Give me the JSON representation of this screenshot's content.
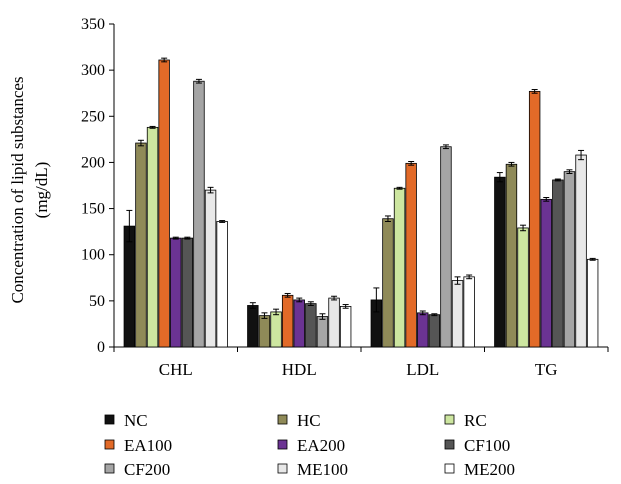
{
  "chart_data": {
    "type": "bar",
    "title": "",
    "xlabel": "",
    "ylabel_line1": "Concentration of lipid substances",
    "ylabel_line2": "(mg/dL)",
    "ylim": [
      0,
      350
    ],
    "yticks": [
      0,
      50,
      100,
      150,
      200,
      250,
      300,
      350
    ],
    "categories": [
      "CHL",
      "HDL",
      "LDL",
      "TG"
    ],
    "grid": false,
    "legend_position": "bottom",
    "series": [
      {
        "name": "NC",
        "color": "#111111",
        "values": [
          131,
          45,
          51,
          184
        ],
        "errors": [
          17,
          3,
          13,
          5
        ]
      },
      {
        "name": "HC",
        "color": "#8f8a58",
        "values": [
          221,
          34,
          139,
          198
        ],
        "errors": [
          3,
          3,
          3,
          2
        ]
      },
      {
        "name": "RC",
        "color": "#cde6a0",
        "values": [
          238,
          38,
          172,
          129
        ],
        "errors": [
          1,
          3,
          1,
          3
        ]
      },
      {
        "name": "EA100",
        "color": "#e26a28",
        "values": [
          311,
          56,
          199,
          277
        ],
        "errors": [
          2,
          2,
          2,
          2
        ]
      },
      {
        "name": "EA200",
        "color": "#6b3393",
        "values": [
          118,
          51,
          37,
          160
        ],
        "errors": [
          1,
          2,
          2,
          2
        ]
      },
      {
        "name": "CF100",
        "color": "#555555",
        "values": [
          118,
          47,
          35,
          181
        ],
        "errors": [
          1,
          2,
          1,
          1
        ]
      },
      {
        "name": "CF200",
        "color": "#a5a5a5",
        "values": [
          288,
          33,
          217,
          190
        ],
        "errors": [
          2,
          3,
          2,
          2
        ]
      },
      {
        "name": "ME100",
        "color": "#e8e8e8",
        "values": [
          170,
          53,
          72,
          208
        ],
        "errors": [
          3,
          2,
          4,
          5
        ]
      },
      {
        "name": "ME200",
        "color": "#ffffff",
        "values": [
          136,
          44,
          76,
          95
        ],
        "errors": [
          1,
          2,
          2,
          1
        ]
      }
    ]
  }
}
